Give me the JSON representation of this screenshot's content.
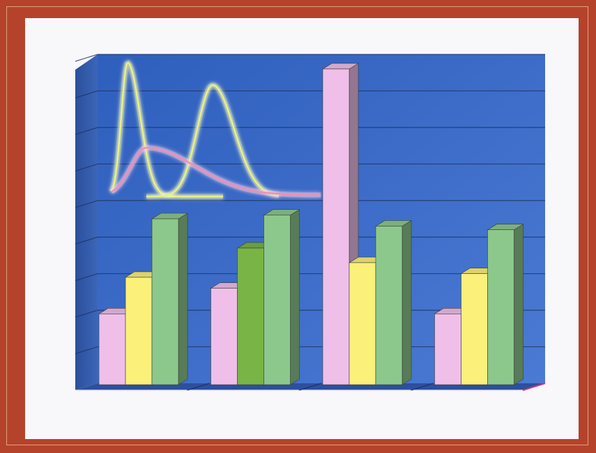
{
  "colors": {
    "frame": "#b5432b",
    "panel": "#f8f7fa",
    "wall": "#3f6ec9",
    "wall_dark": "#2c55a8",
    "floor": "#2d4f9e",
    "pink": "#efbfe9",
    "yellow": "#faf07a",
    "green_dark": "#79b446",
    "green": "#8cc88c"
  },
  "chart_data": {
    "type": "bar",
    "three_d": true,
    "title": "",
    "xlabel": "",
    "ylabel": "",
    "categories": [
      "",
      "",
      "",
      ""
    ],
    "ylim": [
      0,
      9
    ],
    "grid": true,
    "gridline_count": 9,
    "legend": "none",
    "series": [
      {
        "values": [
          1.9,
          2.6,
          8.6,
          1.9
        ],
        "color": "#efbfe9"
      },
      {
        "values": [
          2.9,
          3.7,
          3.3,
          3.0
        ],
        "colors": [
          "#faf07a",
          "#79b446",
          "#faf07a",
          "#faf07a"
        ]
      },
      {
        "values": [
          4.5,
          4.6,
          4.3,
          4.2
        ],
        "color": "#8cc88c"
      }
    ],
    "decoration": {
      "kind": "glowing distribution curves",
      "curves": [
        {
          "color": "#e9f27a",
          "peak": "narrow"
        },
        {
          "color": "#e9f27a",
          "peak": "right"
        },
        {
          "color": "#f28fb8",
          "peak": "wide"
        }
      ]
    }
  }
}
